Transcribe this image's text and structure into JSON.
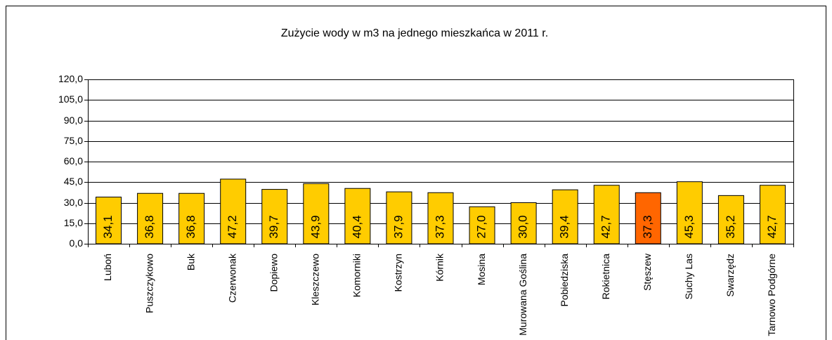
{
  "chart_data": {
    "type": "bar",
    "title": "Zużycie wody w m3 na jednego mieszkańca w 2011 r.",
    "categories": [
      "Luboń",
      "Puszczykowo",
      "Buk",
      "Czerwonak",
      "Dopiewo",
      "Kleszczewo",
      "Komorniki",
      "Kostrzyn",
      "Kórnik",
      "Mosina",
      "Murowana Goślina",
      "Pobiedziska",
      "Rokietnica",
      "Stęszew",
      "Suchy Las",
      "Swarzędz",
      "Tarnowo Podgórne"
    ],
    "values": [
      34.1,
      36.8,
      36.8,
      47.2,
      39.7,
      43.9,
      40.4,
      37.9,
      37.3,
      27.0,
      30.0,
      39.4,
      42.7,
      37.3,
      45.3,
      35.2,
      42.7
    ],
    "value_labels": [
      "34,1",
      "36,8",
      "36,8",
      "47,2",
      "39,7",
      "43,9",
      "40,4",
      "37,9",
      "37,3",
      "27,0",
      "30,0",
      "39,4",
      "42,7",
      "37,3",
      "45,3",
      "35,2",
      "42,7"
    ],
    "colors": [
      "#ffcc00",
      "#ffcc00",
      "#ffcc00",
      "#ffcc00",
      "#ffcc00",
      "#ffcc00",
      "#ffcc00",
      "#ffcc00",
      "#ffcc00",
      "#ffcc00",
      "#ffcc00",
      "#ffcc00",
      "#ffcc00",
      "#ff6600",
      "#ffcc00",
      "#ffcc00",
      "#ffcc00"
    ],
    "ylim": [
      0,
      120
    ],
    "yticks": [
      {
        "value": 0,
        "label": "0,0"
      },
      {
        "value": 15,
        "label": "15,0"
      },
      {
        "value": 30,
        "label": "30,0"
      },
      {
        "value": 45,
        "label": "45,0"
      },
      {
        "value": 60,
        "label": "60,0"
      },
      {
        "value": 75,
        "label": "75,0"
      },
      {
        "value": 90,
        "label": "90,0"
      },
      {
        "value": 105,
        "label": "105,0"
      },
      {
        "value": 120,
        "label": "120,0"
      }
    ],
    "grid": true
  }
}
